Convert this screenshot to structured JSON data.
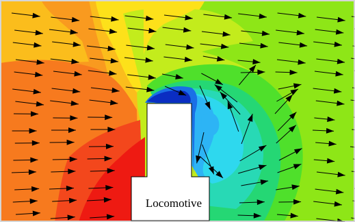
{
  "figure": {
    "label": "Locomotive",
    "colors": {
      "border": "#c8c8c8",
      "body_fill": "#ffffff",
      "body_stroke": "#000000",
      "arrow": "#000000",
      "palette": {
        "red": "#ee1a12",
        "red_orange": "#f3471c",
        "orange": "#f77a1e",
        "orange_light": "#f99a1f",
        "amber": "#fbbd1c",
        "yellow": "#fde11a",
        "yellow_green": "#c3ec1c",
        "lime": "#8ee617",
        "green": "#4fe02b",
        "green_teal": "#25d774",
        "teal": "#28d9b5",
        "cyan": "#2ed8ee",
        "light_blue": "#2db4f5",
        "blue": "#1a6fe6",
        "deep_blue": "#0a2dc2"
      }
    }
  }
}
